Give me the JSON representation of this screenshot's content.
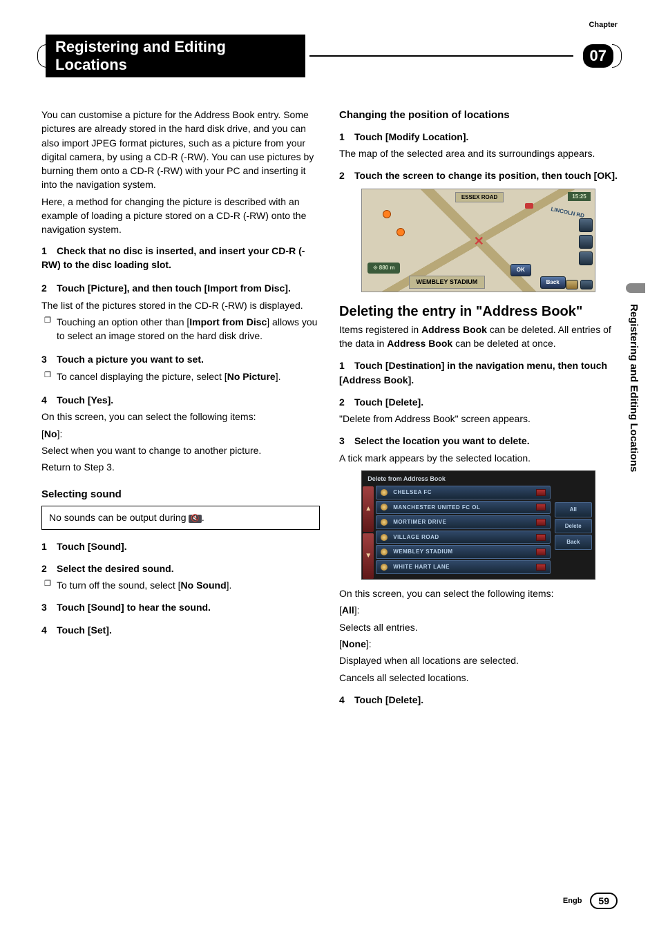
{
  "chapter_label": "Chapter",
  "chapter_number": "07",
  "header_title": "Registering and Editing Locations",
  "side_tab": "Registering and Editing Locations",
  "footer": {
    "lang": "Engb",
    "page": "59"
  },
  "left": {
    "intro_p1": "You can customise a picture for the Address Book entry. Some pictures are already stored in the hard disk drive, and you can also import JPEG format pictures, such as a picture from your digital camera, by using a CD-R (-RW). You can use pictures by burning them onto a CD-R (-RW) with your PC and inserting it into the navigation system.",
    "intro_p2": "Here, a method for changing the picture is described with an example of loading a picture stored on a CD-R (-RW) onto the navigation system.",
    "step1": "Check that no disc is inserted, and insert your CD-R (-RW) to the disc loading slot.",
    "step2": "Touch [Picture], and then touch [Import from Disc].",
    "step2_body": "The list of the pictures stored in the CD-R (-RW) is displayed.",
    "step2_bullet_pre": "Touching an option other than [",
    "step2_bullet_bold": "Import from Disc",
    "step2_bullet_post": "] allows you to select an image stored on the hard disk drive.",
    "step3": "Touch a picture you want to set.",
    "step3_bullet_pre": "To cancel displaying the picture, select [",
    "step3_bullet_bold": "No Picture",
    "step3_bullet_post": "].",
    "step4": "Touch [Yes].",
    "step4_body": "On this screen, you can select the following items:",
    "no_label": "No",
    "no_body1": "Select when you want to change to another picture.",
    "no_body2": "Return to Step 3.",
    "sound_h": "Selecting sound",
    "sound_note_pre": "No sounds can be output during ",
    "sound_note_post": ".",
    "s_step1": "Touch [Sound].",
    "s_step2": "Select the desired sound.",
    "s_step2_bullet_pre": "To turn off the sound, select [",
    "s_step2_bullet_bold": "No Sound",
    "s_step2_bullet_post": "].",
    "s_step3": "Touch [Sound] to hear the sound.",
    "s_step4": "Touch [Set]."
  },
  "right": {
    "chg_h": "Changing the position of locations",
    "chg_step1": "Touch [Modify Location].",
    "chg_step1_body": "The map of the selected area and its surroundings appears.",
    "chg_step2": "Touch the screen to change its position, then touch [OK].",
    "map": {
      "top_road": "ESSEX ROAD",
      "time": "15:25",
      "right_road": "LINCOLN RD",
      "scale_icon": "⟐",
      "scale": "880 m",
      "bottom_label": "WEMBLEY STADIUM",
      "ok": "OK",
      "back": "Back"
    },
    "del_h_pre": "Deleting the entry in ",
    "del_h_q1": "\"",
    "del_h_ab": "Address Book",
    "del_h_q2": "\"",
    "del_body_pre": "Items registered in ",
    "del_body_b1": "Address Book",
    "del_body_mid": " can be deleted. All entries of the data in ",
    "del_body_b2": "Address Book",
    "del_body_post": " can be deleted at once.",
    "d_step1": "Touch [Destination] in the navigation menu, then touch [Address Book].",
    "d_step2": "Touch [Delete].",
    "d_step2_body_pre": "\"",
    "d_step2_body_mid": "Delete from Address Book",
    "d_step2_body_post": "\" screen appears.",
    "d_step3": "Select the location you want to delete.",
    "d_step3_body": "A tick mark appears by the selected location.",
    "list": {
      "title": "Delete from Address Book",
      "rows": [
        "CHELSEA FC",
        "MANCHESTER UNITED FC OL",
        "MORTIMER DRIVE",
        "VILLAGE ROAD",
        "WEMBLEY STADIUM",
        "WHITE HART LANE"
      ],
      "rbtns": [
        "All",
        "Delete",
        "Back"
      ]
    },
    "after_list": "On this screen, you can select the following items:",
    "all_label": "All",
    "all_body": "Selects all entries.",
    "none_label": "None",
    "none_body1": "Displayed when all locations are selected.",
    "none_body2": "Cancels all selected locations.",
    "d_step4": "Touch [Delete]."
  }
}
